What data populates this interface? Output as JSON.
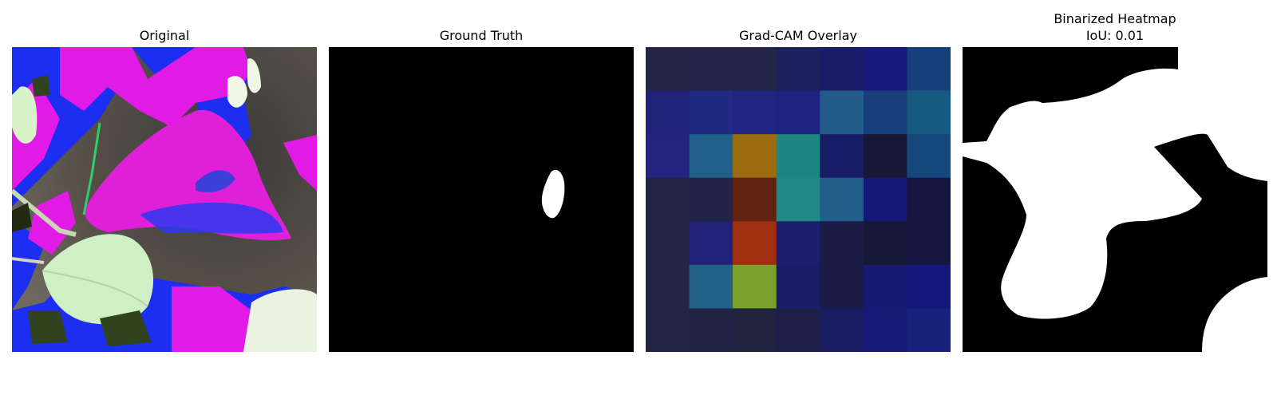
{
  "figure": {
    "panels": [
      {
        "title": "Original"
      },
      {
        "title": "Ground Truth"
      },
      {
        "title": "Grad-CAM Overlay"
      },
      {
        "title": "Binarized Heatmap",
        "subtitle": "IoU: 0.01"
      }
    ],
    "gradcam_grid": [
      [
        "#232645",
        "#232648",
        "#232646",
        "#1d2160",
        "#1b1d6a",
        "#18197a",
        "#16407a"
      ],
      [
        "#1f2278",
        "#212a82",
        "#1f2580",
        "#1d2180",
        "#1f5c88",
        "#183f7a",
        "#175a80"
      ],
      [
        "#24237d",
        "#216088",
        "#9b6b10",
        "#1e8680",
        "#181b66",
        "#171838",
        "#16487e"
      ],
      [
        "#242545",
        "#232445",
        "#61220f",
        "#1f8a84",
        "#215f8a",
        "#171778",
        "#151740"
      ],
      [
        "#242545",
        "#212277",
        "#a02f0f",
        "#1d1e70",
        "#1a1c45",
        "#171838",
        "#151740"
      ],
      [
        "#242545",
        "#226288",
        "#7ba32c",
        "#1b1d6a",
        "#1a1c45",
        "#171870",
        "#15177a"
      ],
      [
        "#242545",
        "#232443",
        "#21233f",
        "#1d1f48",
        "#1a1c62",
        "#171976",
        "#172378"
      ]
    ]
  }
}
